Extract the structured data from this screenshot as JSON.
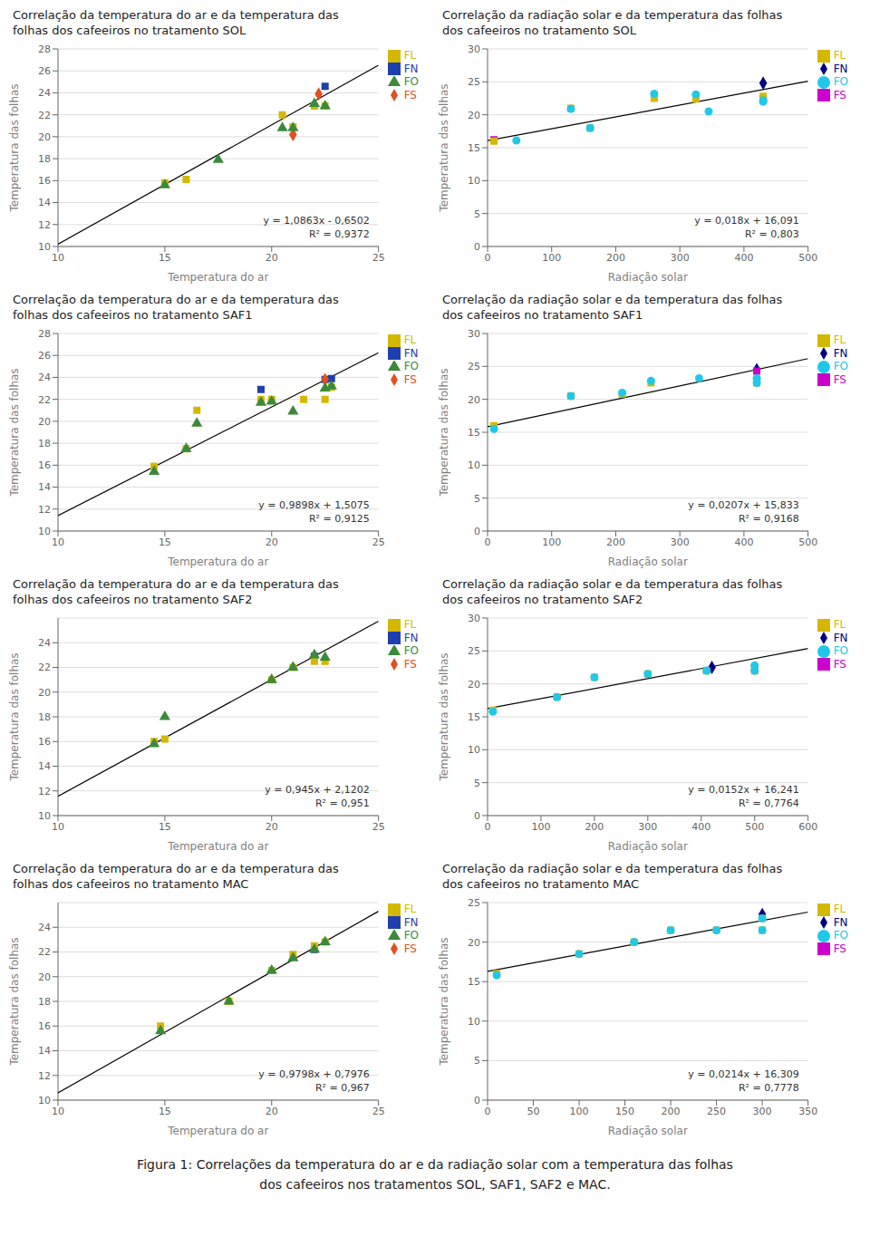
{
  "chart_data": [
    {
      "type": "scatter",
      "title": "Correlação da temperatura do ar e da temperatura das\nfolhas dos cafeeiros no tratamento SOL",
      "x_label": "Temperatura do ar",
      "y_label": "Temperatura das folhas",
      "xlim": [
        10,
        25
      ],
      "ylim": [
        10,
        28
      ],
      "xticks": [
        10,
        15,
        20,
        25
      ],
      "yticks": [
        10,
        12,
        14,
        16,
        18,
        20,
        22,
        24,
        26,
        28
      ],
      "grid": "y",
      "legend": "right",
      "annotations": [
        "y = 1,0863x - 0,6502",
        "R² = 0,9372"
      ],
      "trendline": {
        "color": "#000000",
        "x": [
          10,
          25
        ],
        "y": [
          10.2128,
          26.5073
        ]
      },
      "series": [
        {
          "name": "FN",
          "color": "#1f3faf",
          "marker": "square",
          "x": [
            22.5
          ],
          "values": [
            24.6
          ]
        },
        {
          "name": "FS",
          "color": "#e05020",
          "marker": "diamond",
          "x": [
            21.0,
            22.2
          ],
          "values": [
            20.2,
            23.9
          ]
        },
        {
          "name": "FL",
          "color": "#d4b800",
          "marker": "square",
          "x": [
            15.0,
            16.0,
            20.5,
            21.0,
            22.0,
            22.5
          ],
          "values": [
            15.8,
            16.1,
            22.0,
            20.9,
            22.8,
            22.8
          ]
        },
        {
          "name": "FO",
          "color": "#3a8a3a",
          "marker": "triangle",
          "x": [
            15.0,
            17.5,
            20.5,
            21.0,
            22.0,
            22.5
          ],
          "values": [
            15.6,
            17.9,
            20.8,
            20.8,
            23.0,
            22.8
          ]
        }
      ]
    },
    {
      "type": "scatter",
      "title": "Correlação da radiação solar e da temperatura das folhas\ndos cafeeiros no tratamento SOL",
      "x_label": "Radiação solar",
      "y_label": "Temperatura das folhas",
      "xlim": [
        0,
        500
      ],
      "ylim": [
        0,
        30
      ],
      "xticks": [
        0,
        100,
        200,
        300,
        400,
        500
      ],
      "yticks": [
        0,
        5,
        10,
        15,
        20,
        25,
        30
      ],
      "grid": "y",
      "legend": "right",
      "annotations": [
        "y = 0,018x + 16,091",
        "R² = 0,803"
      ],
      "trendline": {
        "color": "#000000",
        "x": [
          0,
          500
        ],
        "y": [
          16.091,
          25.091
        ]
      },
      "series": [
        {
          "name": "FN",
          "color": "#000080",
          "marker": "diamond",
          "x": [
            430
          ],
          "values": [
            24.8
          ]
        },
        {
          "name": "FS",
          "color": "#cc00cc",
          "marker": "square",
          "x": [
            10,
            430
          ],
          "values": [
            16.2,
            22.5
          ]
        },
        {
          "name": "FL",
          "color": "#d4b800",
          "marker": "square",
          "x": [
            10,
            130,
            160,
            260,
            325,
            430,
            430
          ],
          "values": [
            16.0,
            21.0,
            18.0,
            22.5,
            22.4,
            22.2,
            22.8
          ]
        },
        {
          "name": "FO",
          "color": "#20c8e8",
          "marker": "circle",
          "x": [
            45,
            130,
            160,
            260,
            325,
            345,
            430,
            430
          ],
          "values": [
            16.1,
            20.9,
            18.0,
            23.2,
            23.1,
            20.5,
            22.2,
            22.0
          ]
        }
      ]
    },
    {
      "type": "scatter",
      "title": "Correlação da temperatura do ar e da temperatura das\nfolhas dos cafeeiros no tratamento SAF1",
      "x_label": "Temperatura do ar",
      "y_label": "Temperatura das folhas",
      "xlim": [
        10,
        25
      ],
      "ylim": [
        10,
        28
      ],
      "xticks": [
        10,
        15,
        20,
        25
      ],
      "yticks": [
        10,
        12,
        14,
        16,
        18,
        20,
        22,
        24,
        26,
        28
      ],
      "grid": "y",
      "legend": "right",
      "annotations": [
        "y = 0,9898x + 1,5075",
        "R² = 0,9125"
      ],
      "trendline": {
        "color": "#000000",
        "x": [
          10,
          25
        ],
        "y": [
          11.4055,
          26.2525
        ]
      },
      "series": [
        {
          "name": "FN",
          "color": "#1f3faf",
          "marker": "square",
          "x": [
            19.5,
            22.5,
            22.8
          ],
          "values": [
            22.9,
            23.8,
            23.9
          ]
        },
        {
          "name": "FS",
          "color": "#e05020",
          "marker": "diamond",
          "x": [
            22.5
          ],
          "values": [
            23.8
          ]
        },
        {
          "name": "FL",
          "color": "#d4b800",
          "marker": "square",
          "x": [
            14.5,
            16.0,
            16.5,
            19.5,
            20.0,
            21.5,
            22.5,
            22.8
          ],
          "values": [
            15.9,
            17.5,
            21.0,
            22.0,
            22.0,
            22.0,
            22.0,
            23.1
          ]
        },
        {
          "name": "FO",
          "color": "#3a8a3a",
          "marker": "triangle",
          "x": [
            14.5,
            16.0,
            16.5,
            19.5,
            20.0,
            21.0,
            22.5,
            22.8
          ],
          "values": [
            15.4,
            17.5,
            19.8,
            21.7,
            21.8,
            20.9,
            23.0,
            23.2
          ]
        }
      ]
    },
    {
      "type": "scatter",
      "title": "Correlação da radiação solar e da temperatura das folhas\ndos cafeeiros no tratamento SAF1",
      "x_label": "Radiação solar",
      "y_label": "Temperatura das folhas",
      "xlim": [
        0,
        500
      ],
      "ylim": [
        0,
        30
      ],
      "xticks": [
        0,
        100,
        200,
        300,
        400,
        500
      ],
      "yticks": [
        0,
        5,
        10,
        15,
        20,
        25,
        30
      ],
      "grid": "y",
      "legend": "right",
      "annotations": [
        "y = 0,0207x + 15,833",
        "R² = 0,9168"
      ],
      "trendline": {
        "color": "#000000",
        "x": [
          0,
          500
        ],
        "y": [
          15.833,
          26.183
        ]
      },
      "series": [
        {
          "name": "FN",
          "color": "#000080",
          "marker": "diamond",
          "x": [
            420
          ],
          "values": [
            24.5
          ]
        },
        {
          "name": "FS",
          "color": "#cc00cc",
          "marker": "square",
          "x": [
            420
          ],
          "values": [
            24.3
          ]
        },
        {
          "name": "FL",
          "color": "#d4b800",
          "marker": "square",
          "x": [
            10,
            130,
            210,
            255,
            420,
            420
          ],
          "values": [
            16.0,
            20.5,
            20.8,
            22.5,
            22.5,
            23.0
          ]
        },
        {
          "name": "FO",
          "color": "#20c8e8",
          "marker": "circle",
          "x": [
            10,
            130,
            210,
            255,
            330,
            420,
            420
          ],
          "values": [
            15.5,
            20.5,
            21.0,
            22.8,
            23.2,
            22.5,
            23.2
          ]
        }
      ]
    },
    {
      "type": "scatter",
      "title": "Correlação da temperatura do ar e da temperatura das\nfolhas dos cafeeiros no tratamento SAF2",
      "x_label": "Temperatura do ar",
      "y_label": "Temperatura das folhas",
      "xlim": [
        10,
        25
      ],
      "ylim": [
        10,
        26
      ],
      "xticks": [
        10,
        15,
        20,
        25
      ],
      "yticks": [
        10,
        12,
        14,
        16,
        18,
        20,
        22,
        24
      ],
      "grid": "y",
      "legend": "right",
      "annotations": [
        "y = 0,945x + 2,1202",
        "R² = 0,951"
      ],
      "trendline": {
        "color": "#000000",
        "x": [
          10,
          25
        ],
        "y": [
          11.5702,
          25.7452
        ]
      },
      "series": [
        {
          "name": "FN",
          "color": "#1f3faf",
          "marker": "square",
          "x": [
            22.0
          ],
          "values": [
            22.9
          ]
        },
        {
          "name": "FS",
          "color": "#e05020",
          "marker": "diamond",
          "x": [],
          "values": []
        },
        {
          "name": "FL",
          "color": "#d4b800",
          "marker": "square",
          "x": [
            14.5,
            15.0,
            20.0,
            21.0,
            22.0,
            22.5
          ],
          "values": [
            16.0,
            16.2,
            21.0,
            22.0,
            22.5,
            22.5
          ]
        },
        {
          "name": "FO",
          "color": "#3a8a3a",
          "marker": "triangle",
          "x": [
            14.5,
            15.0,
            20.0,
            21.0,
            22.0,
            22.5
          ],
          "values": [
            15.8,
            18.0,
            21.0,
            22.0,
            23.0,
            22.8
          ]
        }
      ]
    },
    {
      "type": "scatter",
      "title": "Correlação da radiação solar e da temperatura das folhas\ndos cafeeiros no tratamento SAF2",
      "x_label": "Radiação solar",
      "y_label": "Temperatura das folhas",
      "xlim": [
        0,
        600
      ],
      "ylim": [
        0,
        30
      ],
      "xticks": [
        0,
        100,
        200,
        300,
        400,
        500,
        600
      ],
      "yticks": [
        0,
        5,
        10,
        15,
        20,
        25,
        30
      ],
      "grid": "y",
      "legend": "right",
      "annotations": [
        "y = 0,0152x + 16,241",
        "R² = 0,7764"
      ],
      "trendline": {
        "color": "#000000",
        "x": [
          0,
          600
        ],
        "y": [
          16.241,
          25.361
        ]
      },
      "series": [
        {
          "name": "FN",
          "color": "#000080",
          "marker": "diamond",
          "x": [
            420
          ],
          "values": [
            22.5
          ]
        },
        {
          "name": "FS",
          "color": "#cc00cc",
          "marker": "square",
          "x": [],
          "values": []
        },
        {
          "name": "FL",
          "color": "#d4b800",
          "marker": "square",
          "x": [
            10,
            130,
            200,
            300,
            410,
            500,
            500
          ],
          "values": [
            16.0,
            18.0,
            21.0,
            21.5,
            22.0,
            22.0,
            22.5
          ]
        },
        {
          "name": "FO",
          "color": "#20c8e8",
          "marker": "circle",
          "x": [
            10,
            130,
            200,
            300,
            410,
            500,
            500
          ],
          "values": [
            15.8,
            18.0,
            21.0,
            21.5,
            22.0,
            22.0,
            22.8
          ]
        }
      ]
    },
    {
      "type": "scatter",
      "title": "Correlação da temperatura do ar e da temperatura das\nfolhas dos cafeeiros no tratamento MAC",
      "x_label": "Temperatura do ar",
      "y_label": "Temperatura das folhas",
      "xlim": [
        10,
        25
      ],
      "ylim": [
        10,
        26
      ],
      "xticks": [
        10,
        15,
        20,
        25
      ],
      "yticks": [
        10,
        12,
        14,
        16,
        18,
        20,
        22,
        24
      ],
      "grid": "y",
      "legend": "right",
      "annotations": [
        "y = 0,9798x + 0,7976",
        "R² = 0,967"
      ],
      "trendline": {
        "color": "#000000",
        "x": [
          10,
          25
        ],
        "y": [
          10.5956,
          25.2926
        ]
      },
      "series": [
        {
          "name": "FN",
          "color": "#1f3faf",
          "marker": "square",
          "x": [
            22.0
          ],
          "values": [
            22.2
          ]
        },
        {
          "name": "FS",
          "color": "#e05020",
          "marker": "diamond",
          "x": [],
          "values": []
        },
        {
          "name": "FL",
          "color": "#d4b800",
          "marker": "square",
          "x": [
            14.8,
            18.0,
            20.0,
            21.0,
            22.0,
            22.5
          ],
          "values": [
            16.0,
            18.0,
            20.5,
            21.8,
            22.5,
            22.8
          ]
        },
        {
          "name": "FO",
          "color": "#3a8a3a",
          "marker": "triangle",
          "x": [
            14.8,
            18.0,
            20.0,
            21.0,
            22.0,
            22.5
          ],
          "values": [
            15.6,
            18.0,
            20.5,
            21.5,
            22.2,
            22.8
          ]
        }
      ]
    },
    {
      "type": "scatter",
      "title": "Correlação da radiação solar e da temperatura das folhas\ndos cafeeiros no tratamento MAC",
      "x_label": "Radiação solar",
      "y_label": "Temperatura das folhas",
      "xlim": [
        0,
        350
      ],
      "ylim": [
        0,
        25
      ],
      "xticks": [
        0,
        50,
        100,
        150,
        200,
        250,
        300,
        350
      ],
      "yticks": [
        0,
        5,
        10,
        15,
        20,
        25
      ],
      "grid": "y",
      "legend": "right",
      "annotations": [
        "y = 0,0214x + 16,309",
        "R² = 0,7778"
      ],
      "trendline": {
        "color": "#000000",
        "x": [
          0,
          350
        ],
        "y": [
          16.309,
          23.799
        ]
      },
      "series": [
        {
          "name": "FN",
          "color": "#000080",
          "marker": "diamond",
          "x": [
            300
          ],
          "values": [
            23.5
          ]
        },
        {
          "name": "FS",
          "color": "#cc00cc",
          "marker": "square",
          "x": [],
          "values": []
        },
        {
          "name": "FL",
          "color": "#d4b800",
          "marker": "square",
          "x": [
            10,
            100,
            160,
            200,
            250,
            300,
            300
          ],
          "values": [
            16.0,
            18.5,
            20.0,
            21.5,
            21.5,
            21.5,
            23.0
          ]
        },
        {
          "name": "FO",
          "color": "#20c8e8",
          "marker": "circle",
          "x": [
            10,
            100,
            160,
            200,
            250,
            300,
            300
          ],
          "values": [
            15.8,
            18.5,
            20.0,
            21.5,
            21.5,
            21.5,
            23.0
          ]
        }
      ]
    }
  ],
  "caption": "Figura 1: Correlações da temperatura do ar e da radiação solar com a temperatura das folhas\ndos cafeeiros nos tratamentos SOL, SAF1, SAF2 e MAC."
}
